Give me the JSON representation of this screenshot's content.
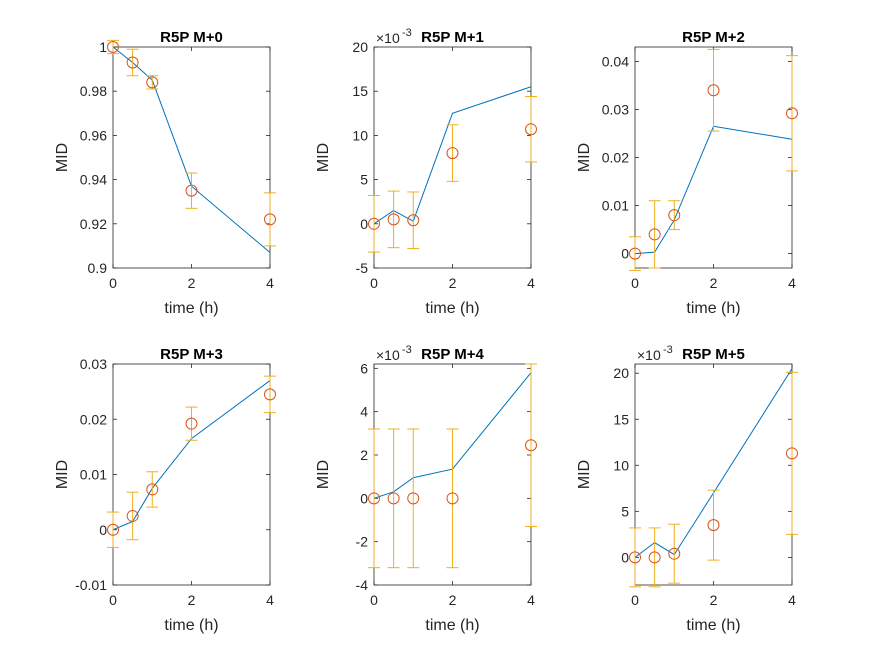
{
  "chart_data": [
    {
      "type": "line",
      "title": "R5P M+0",
      "xlabel": "time (h)",
      "ylabel": "MID",
      "xlim": [
        0,
        4
      ],
      "ylim": [
        0.9,
        1.0
      ],
      "xticks": [
        0,
        2,
        4
      ],
      "yticks": [
        0.9,
        0.92,
        0.94,
        0.96,
        0.98,
        1.0
      ],
      "ytick_labels": [
        "0.9",
        "0.92",
        "0.94",
        "0.96",
        "0.98",
        "1"
      ],
      "exponent": "",
      "series": [
        {
          "kind": "line",
          "x": [
            0,
            0.5,
            1,
            2,
            4
          ],
          "y": [
            1.0,
            0.993,
            0.985,
            0.937,
            0.907
          ]
        },
        {
          "kind": "errorbar",
          "x": [
            0,
            0.5,
            1,
            2,
            4
          ],
          "y": [
            1.0,
            0.993,
            0.984,
            0.935,
            0.922
          ],
          "err": [
            0.003,
            0.006,
            0.003,
            0.008,
            0.012
          ]
        }
      ]
    },
    {
      "type": "line",
      "title": "R5P M+1",
      "xlabel": "time (h)",
      "ylabel": "MID",
      "xlim": [
        0,
        4
      ],
      "ylim": [
        -5,
        20
      ],
      "xticks": [
        0,
        2,
        4
      ],
      "yticks": [
        -5,
        0,
        5,
        10,
        15,
        20
      ],
      "ytick_labels": [
        "-5",
        "0",
        "5",
        "10",
        "15",
        "20"
      ],
      "exponent": "-3",
      "series": [
        {
          "kind": "line",
          "x": [
            0,
            0.5,
            1,
            2,
            4
          ],
          "y": [
            0,
            1.5,
            0.3,
            12.5,
            15.5
          ]
        },
        {
          "kind": "errorbar",
          "x": [
            0,
            0.5,
            1,
            2,
            4
          ],
          "y": [
            0,
            0.5,
            0.4,
            8,
            10.7
          ],
          "err": [
            3.2,
            3.2,
            3.2,
            3.2,
            3.7
          ]
        }
      ]
    },
    {
      "type": "line",
      "title": "R5P M+2",
      "xlabel": "time (h)",
      "ylabel": "MID",
      "xlim": [
        0,
        4
      ],
      "ylim": [
        -0.003,
        0.043
      ],
      "xticks": [
        0,
        2,
        4
      ],
      "yticks": [
        0,
        0.01,
        0.02,
        0.03,
        0.04
      ],
      "ytick_labels": [
        "0",
        "0.01",
        "0.02",
        "0.03",
        "0.04"
      ],
      "exponent": "",
      "series": [
        {
          "kind": "line",
          "x": [
            0,
            0.5,
            1,
            2,
            4
          ],
          "y": [
            0,
            0.0003,
            0.007,
            0.0265,
            0.0238
          ]
        },
        {
          "kind": "errorbar",
          "x": [
            0,
            0.5,
            1,
            2,
            4
          ],
          "y": [
            0,
            0.004,
            0.008,
            0.034,
            0.0292
          ],
          "err": [
            0.0035,
            0.007,
            0.003,
            0.0085,
            0.012
          ]
        }
      ]
    },
    {
      "type": "line",
      "title": "R5P M+3",
      "xlabel": "time (h)",
      "ylabel": "MID",
      "xlim": [
        0,
        4
      ],
      "ylim": [
        -0.01,
        0.03
      ],
      "xticks": [
        0,
        2,
        4
      ],
      "yticks": [
        -0.01,
        0,
        0.01,
        0.02,
        0.03
      ],
      "ytick_labels": [
        "-0.01",
        "0",
        "0.01",
        "0.02",
        "0.03"
      ],
      "exponent": "",
      "series": [
        {
          "kind": "line",
          "x": [
            0,
            0.5,
            1,
            2,
            4
          ],
          "y": [
            0,
            0.0015,
            0.0075,
            0.0165,
            0.027
          ]
        },
        {
          "kind": "errorbar",
          "x": [
            0,
            0.5,
            1,
            2,
            4
          ],
          "y": [
            0,
            0.0025,
            0.0073,
            0.0192,
            0.0245
          ],
          "err": [
            0.0032,
            0.0043,
            0.0032,
            0.003,
            0.0033
          ]
        }
      ]
    },
    {
      "type": "line",
      "title": "R5P M+4",
      "xlabel": "time (h)",
      "ylabel": "MID",
      "xlim": [
        0,
        4
      ],
      "ylim": [
        -4,
        6.2
      ],
      "xticks": [
        0,
        2,
        4
      ],
      "yticks": [
        -4,
        -2,
        0,
        2,
        4,
        6
      ],
      "ytick_labels": [
        "-4",
        "-2",
        "0",
        "2",
        "4",
        "6"
      ],
      "exponent": "-3",
      "series": [
        {
          "kind": "line",
          "x": [
            0,
            0.5,
            1,
            2,
            4
          ],
          "y": [
            0,
            0.3,
            0.95,
            1.35,
            5.8
          ]
        },
        {
          "kind": "errorbar",
          "x": [
            0,
            0.5,
            1,
            2,
            4
          ],
          "y": [
            0,
            0,
            0,
            0,
            2.45
          ],
          "err": [
            3.2,
            3.2,
            3.2,
            3.2,
            3.75
          ]
        }
      ]
    },
    {
      "type": "line",
      "title": "R5P M+5",
      "xlabel": "time (h)",
      "ylabel": "MID",
      "xlim": [
        0,
        4
      ],
      "ylim": [
        -3,
        21
      ],
      "xticks": [
        0,
        2,
        4
      ],
      "yticks": [
        0,
        5,
        10,
        15,
        20
      ],
      "ytick_labels": [
        "0",
        "5",
        "10",
        "15",
        "20"
      ],
      "exponent": "-3",
      "series": [
        {
          "kind": "line",
          "x": [
            0,
            0.5,
            1,
            2,
            4
          ],
          "y": [
            0,
            1.6,
            0.3,
            7,
            20.5
          ]
        },
        {
          "kind": "errorbar",
          "x": [
            0,
            0.5,
            1,
            2,
            4
          ],
          "y": [
            0,
            0,
            0.4,
            3.5,
            11.3
          ],
          "err": [
            3.2,
            3.2,
            3.2,
            3.8,
            8.8
          ]
        }
      ]
    }
  ],
  "colors": {
    "line": "#0072bd",
    "marker": "#d95319",
    "errorbar": "#edb120",
    "axis": "#262626"
  }
}
